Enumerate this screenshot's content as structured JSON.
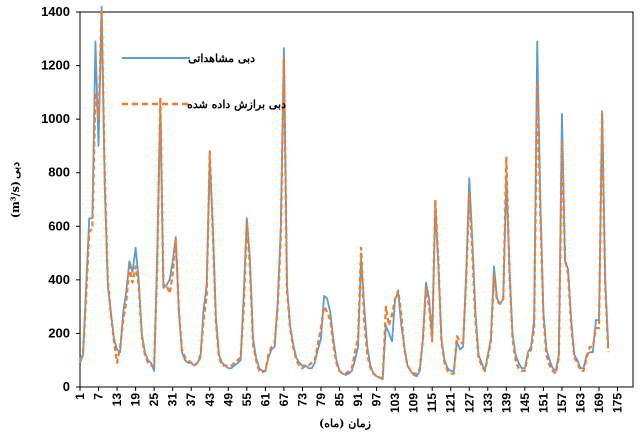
{
  "chart_data": {
    "type": "line",
    "xlabel": "زمان (ماه)",
    "ylabel": "دبی (m³/s)",
    "ylabel_prefix": "دبی",
    "ylabel_unit": "(m³/s)",
    "ylim": [
      0,
      1400
    ],
    "yticks": [
      0,
      200,
      400,
      600,
      800,
      1000,
      1200,
      1400
    ],
    "xlim": [
      1,
      180
    ],
    "xticks": [
      1,
      7,
      13,
      19,
      25,
      31,
      37,
      43,
      49,
      55,
      61,
      67,
      73,
      79,
      85,
      91,
      97,
      103,
      109,
      115,
      121,
      127,
      133,
      139,
      145,
      151,
      157,
      163,
      169,
      175
    ],
    "grid": false,
    "legend_position": "top-left",
    "colors": {
      "observed": "#5b9bd5",
      "fitted": "#ed7d31"
    },
    "series": [
      {
        "name": "دبی مشاهداتی",
        "style": "solid",
        "values": [
          90,
          120,
          380,
          630,
          630,
          1290,
          900,
          1420,
          750,
          380,
          280,
          180,
          140,
          130,
          280,
          360,
          470,
          430,
          520,
          400,
          200,
          130,
          100,
          90,
          60,
          500,
          1050,
          370,
          380,
          400,
          470,
          560,
          280,
          130,
          100,
          90,
          90,
          80,
          90,
          110,
          290,
          380,
          850,
          600,
          260,
          120,
          90,
          80,
          70,
          70,
          80,
          90,
          100,
          350,
          630,
          480,
          180,
          110,
          70,
          60,
          60,
          110,
          140,
          150,
          320,
          600,
          1265,
          380,
          230,
          160,
          110,
          90,
          80,
          80,
          70,
          70,
          90,
          140,
          180,
          340,
          330,
          280,
          180,
          100,
          60,
          50,
          45,
          50,
          60,
          100,
          150,
          480,
          300,
          150,
          80,
          50,
          40,
          35,
          35,
          230,
          200,
          170,
          330,
          350,
          230,
          150,
          80,
          60,
          45,
          40,
          60,
          180,
          390,
          330,
          180,
          680,
          450,
          180,
          100,
          70,
          60,
          60,
          170,
          140,
          150,
          420,
          780,
          550,
          280,
          120,
          90,
          60,
          120,
          180,
          450,
          330,
          310,
          330,
          780,
          450,
          200,
          120,
          90,
          70,
          70,
          130,
          150,
          250,
          1290,
          700,
          280,
          140,
          100,
          70,
          60,
          120,
          1020,
          470,
          440,
          250,
          120,
          100,
          70,
          70,
          120,
          130,
          130,
          250,
          250,
          1030,
          400,
          150
        ]
      },
      {
        "name": "دبی برازش داده شده",
        "style": "dashed",
        "values": [
          100,
          130,
          340,
          580,
          590,
          1100,
          1000,
          1410,
          800,
          400,
          270,
          170,
          90,
          150,
          250,
          320,
          450,
          390,
          450,
          380,
          190,
          120,
          90,
          80,
          80,
          450,
          1080,
          380,
          380,
          350,
          420,
          550,
          290,
          140,
          110,
          100,
          90,
          80,
          90,
          120,
          250,
          340,
          880,
          570,
          240,
          110,
          80,
          80,
          80,
          80,
          90,
          100,
          110,
          300,
          620,
          450,
          160,
          100,
          60,
          55,
          60,
          120,
          150,
          160,
          300,
          560,
          1230,
          360,
          220,
          150,
          100,
          80,
          70,
          80,
          80,
          90,
          100,
          160,
          220,
          300,
          280,
          250,
          160,
          90,
          60,
          50,
          50,
          60,
          70,
          130,
          180,
          520,
          250,
          120,
          70,
          50,
          40,
          35,
          30,
          300,
          230,
          270,
          330,
          360,
          270,
          140,
          80,
          60,
          50,
          50,
          70,
          180,
          370,
          300,
          170,
          700,
          470,
          170,
          90,
          60,
          50,
          50,
          190,
          170,
          160,
          400,
          720,
          500,
          250,
          110,
          80,
          60,
          110,
          170,
          420,
          320,
          310,
          330,
          860,
          430,
          180,
          100,
          70,
          60,
          60,
          120,
          140,
          220,
          1140,
          650,
          260,
          120,
          80,
          60,
          50,
          110,
          920,
          480,
          420,
          230,
          110,
          90,
          60,
          60,
          110,
          150,
          150,
          220,
          220,
          1020,
          380,
          130
        ]
      }
    ]
  }
}
